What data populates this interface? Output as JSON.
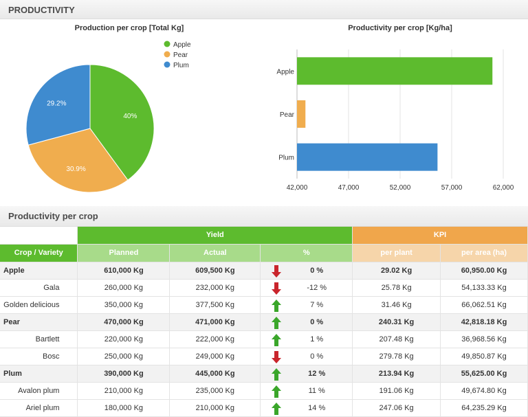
{
  "header": {
    "title": "PRODUCTIVITY"
  },
  "pie_chart": {
    "title": "Production per crop [Total Kg]",
    "legend": [
      "Apple",
      "Pear",
      "Plum"
    ],
    "labels": [
      "40%",
      "30.9%",
      "29.2%"
    ]
  },
  "bar_chart": {
    "title": "Productivity per crop [Kg/ha]",
    "categories": [
      "Apple",
      "Pear",
      "Plum"
    ],
    "ticks": [
      "42,000",
      "47,000",
      "52,000",
      "57,000",
      "62,000"
    ]
  },
  "chart_data": [
    {
      "type": "pie",
      "title": "Production per crop [Total Kg]",
      "labels": [
        "Apple",
        "Pear",
        "Plum"
      ],
      "values": [
        40,
        30.9,
        29.2
      ],
      "colors": [
        "#5dbb2e",
        "#f0ad4e",
        "#3f8bcf"
      ],
      "legend": "top-right"
    },
    {
      "type": "bar",
      "orientation": "horizontal",
      "title": "Productivity per crop [Kg/ha]",
      "categories": [
        "Apple",
        "Pear",
        "Plum"
      ],
      "values": [
        60950,
        42818,
        55625
      ],
      "colors": [
        "#5dbb2e",
        "#f0ad4e",
        "#3f8bcf"
      ],
      "xlim": [
        42000,
        62000
      ],
      "xticks": [
        42000,
        47000,
        52000,
        57000,
        62000
      ],
      "grid": true
    }
  ],
  "table": {
    "title": "Productivity per crop",
    "group_yield": "Yield",
    "group_kpi": "KPI",
    "columns": [
      "Crop / Variety",
      "Planned",
      "Actual",
      "%",
      "per plant",
      "per area (ha)"
    ],
    "rows": [
      {
        "name": "Apple",
        "planned": "610,000 Kg",
        "actual": "609,500 Kg",
        "trend": "down",
        "pct": "0 %",
        "per_plant": "29.02 Kg",
        "per_area": "60,950.00 Kg",
        "main": true
      },
      {
        "name": "Gala",
        "planned": "260,000 Kg",
        "actual": "232,000 Kg",
        "trend": "down",
        "pct": "-12 %",
        "per_plant": "25.78 Kg",
        "per_area": "54,133.33 Kg",
        "main": false
      },
      {
        "name": "Golden delicious",
        "planned": "350,000 Kg",
        "actual": "377,500 Kg",
        "trend": "up",
        "pct": "7 %",
        "per_plant": "31.46 Kg",
        "per_area": "66,062.51 Kg",
        "main": false
      },
      {
        "name": "Pear",
        "planned": "470,000 Kg",
        "actual": "471,000 Kg",
        "trend": "up",
        "pct": "0 %",
        "per_plant": "240.31 Kg",
        "per_area": "42,818.18 Kg",
        "main": true
      },
      {
        "name": "Bartlett",
        "planned": "220,000 Kg",
        "actual": "222,000 Kg",
        "trend": "up",
        "pct": "1 %",
        "per_plant": "207.48 Kg",
        "per_area": "36,968.56 Kg",
        "main": false
      },
      {
        "name": "Bosc",
        "planned": "250,000 Kg",
        "actual": "249,000 Kg",
        "trend": "down",
        "pct": "0 %",
        "per_plant": "279.78 Kg",
        "per_area": "49,850.87 Kg",
        "main": false
      },
      {
        "name": "Plum",
        "planned": "390,000 Kg",
        "actual": "445,000 Kg",
        "trend": "up",
        "pct": "12 %",
        "per_plant": "213.94 Kg",
        "per_area": "55,625.00 Kg",
        "main": true
      },
      {
        "name": "Avalon plum",
        "planned": "210,000 Kg",
        "actual": "235,000 Kg",
        "trend": "up",
        "pct": "11 %",
        "per_plant": "191.06 Kg",
        "per_area": "49,674.80 Kg",
        "main": false
      },
      {
        "name": "Ariel plum",
        "planned": "180,000 Kg",
        "actual": "210,000 Kg",
        "trend": "up",
        "pct": "14 %",
        "per_plant": "247.06 Kg",
        "per_area": "64,235.29 Kg",
        "main": false
      }
    ]
  },
  "colors": {
    "green": "#5dbb2e",
    "orange": "#f0ad4e",
    "blue": "#3f8bcf",
    "arrow_up": "#3aa62a",
    "arrow_down": "#c9252c"
  }
}
